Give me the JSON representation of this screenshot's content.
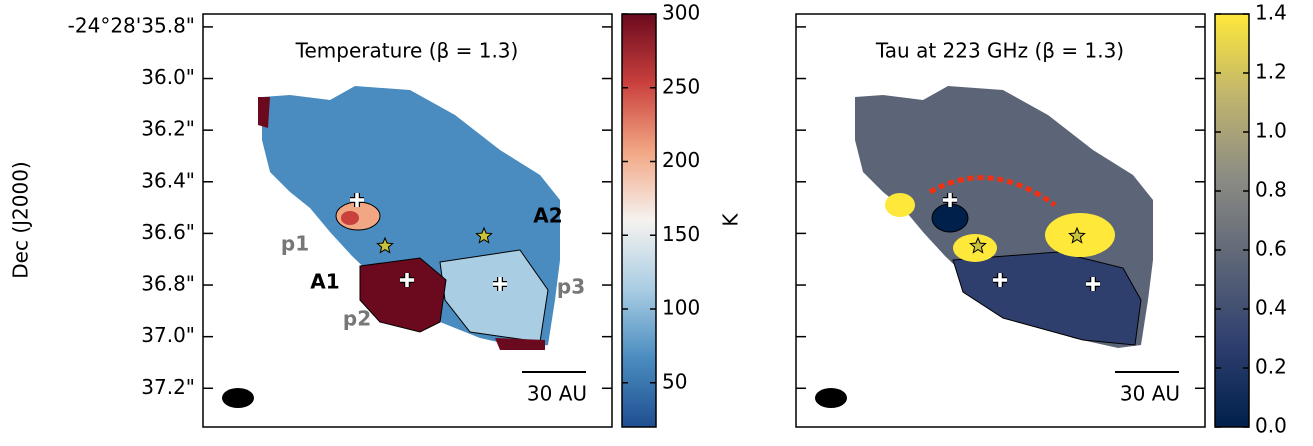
{
  "chart_data": [
    {
      "type": "heatmap",
      "title": "Temperature (β = 1.3)",
      "ylabel": "Dec (J2000)",
      "ylim": [
        37.35,
        35.75
      ],
      "yticks": [
        {
          "value": 35.8,
          "label": "-24°28'35.8\""
        },
        {
          "value": 36.0,
          "label": "36.0\""
        },
        {
          "value": 36.2,
          "label": "36.2\""
        },
        {
          "value": 36.4,
          "label": "36.4\""
        },
        {
          "value": 36.6,
          "label": "36.6\""
        },
        {
          "value": 36.8,
          "label": "36.8\""
        },
        {
          "value": 37.0,
          "label": "37.0\""
        },
        {
          "value": 37.2,
          "label": "37.2\""
        }
      ],
      "annotations": [
        "A1",
        "A2",
        "p1",
        "p2",
        "p3",
        "30 AU"
      ],
      "colorbar": {
        "label": "K",
        "lim": [
          20,
          300
        ],
        "ticks": [
          50,
          100,
          150,
          200,
          250,
          300
        ],
        "cmap": [
          "#1f4f91",
          "#4a8cc0",
          "#a9cde3",
          "#f5f2f0",
          "#f2a784",
          "#c9403d",
          "#6b0a1e"
        ]
      }
    },
    {
      "type": "heatmap",
      "title": "Tau at 223 GHz (β = 1.3)",
      "annotations": [
        "30 AU"
      ],
      "colorbar": {
        "lim": [
          0,
          1.4
        ],
        "ticks": [
          {
            "value": 0,
            "label": "0.0"
          },
          0.2,
          0.4,
          0.6,
          0.8,
          {
            "value": 1,
            "label": "1.0"
          },
          1.2,
          1.4
        ],
        "cmap": [
          "#00204c",
          "#2e3f6e",
          "#5c6577",
          "#8b8b84",
          "#c0b46e",
          "#fee83a"
        ]
      }
    }
  ]
}
